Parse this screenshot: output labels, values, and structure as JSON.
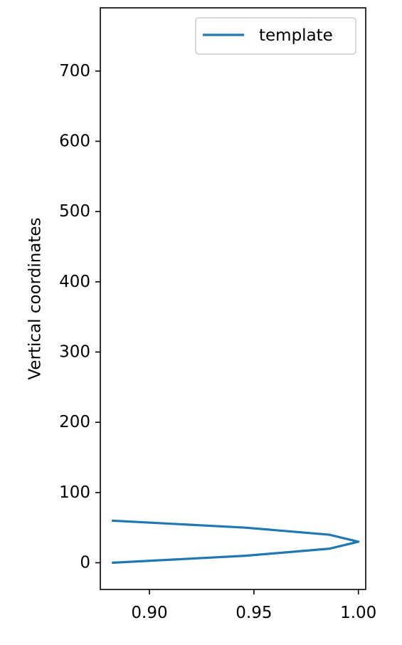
{
  "chart_data": {
    "type": "line",
    "title": "",
    "xlabel": "",
    "ylabel": "Vertical coordinates",
    "xlim": [
      0.8765,
      1.0035
    ],
    "ylim": [
      -38,
      790
    ],
    "xticks": [
      0.9,
      0.95,
      1.0
    ],
    "xtick_labels": [
      "0.90",
      "0.95",
      "1.00"
    ],
    "yticks": [
      0,
      100,
      200,
      300,
      400,
      500,
      600,
      700
    ],
    "ytick_labels": [
      "0",
      "100",
      "200",
      "300",
      "400",
      "500",
      "600",
      "700"
    ],
    "grid": false,
    "legend_position": "top-right",
    "series": [
      {
        "name": "template",
        "color": "#1f77b4",
        "x": [
          0.882,
          0.946,
          0.986,
          1.0,
          0.986,
          0.946,
          0.882
        ],
        "y": [
          0,
          10,
          20,
          30,
          40,
          50,
          60
        ]
      }
    ]
  }
}
